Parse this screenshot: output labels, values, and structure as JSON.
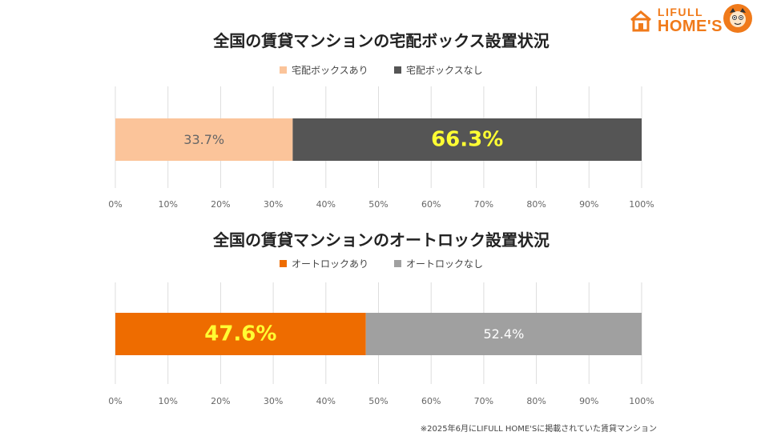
{
  "logo": {
    "line1": "LIFULL",
    "line2": "HOME'S"
  },
  "footnote": "※2025年6月にLIFULL HOME'Sに掲載されていた賃貸マンション",
  "chart_data": [
    {
      "type": "bar",
      "orientation": "horizontal",
      "stacked": true,
      "title": "全国の賃貸マンションの宅配ボックス設置状況",
      "xlim": [
        0,
        100
      ],
      "x_ticks": [
        "0%",
        "10%",
        "20%",
        "30%",
        "40%",
        "50%",
        "60%",
        "70%",
        "80%",
        "90%",
        "100%"
      ],
      "grid": true,
      "legend_position": "top",
      "series": [
        {
          "name": "宅配ボックスあり",
          "value": 33.7,
          "label": "33.7%",
          "color": "#fbc49a",
          "label_color": "#666666",
          "emphasis": false
        },
        {
          "name": "宅配ボックスなし",
          "value": 66.3,
          "label": "66.3%",
          "color": "#555555",
          "label_color": "#ffff33",
          "emphasis": true
        }
      ]
    },
    {
      "type": "bar",
      "orientation": "horizontal",
      "stacked": true,
      "title": "全国の賃貸マンションのオートロック設置状況",
      "xlim": [
        0,
        100
      ],
      "x_ticks": [
        "0%",
        "10%",
        "20%",
        "30%",
        "40%",
        "50%",
        "60%",
        "70%",
        "80%",
        "90%",
        "100%"
      ],
      "grid": true,
      "legend_position": "top",
      "series": [
        {
          "name": "オートロックあり",
          "value": 47.6,
          "label": "47.6%",
          "color": "#ee6c00",
          "label_color": "#ffff33",
          "emphasis": true
        },
        {
          "name": "オートロックなし",
          "value": 52.4,
          "label": "52.4%",
          "color": "#a0a0a0",
          "label_color": "#ffffff",
          "emphasis": false
        }
      ]
    }
  ]
}
